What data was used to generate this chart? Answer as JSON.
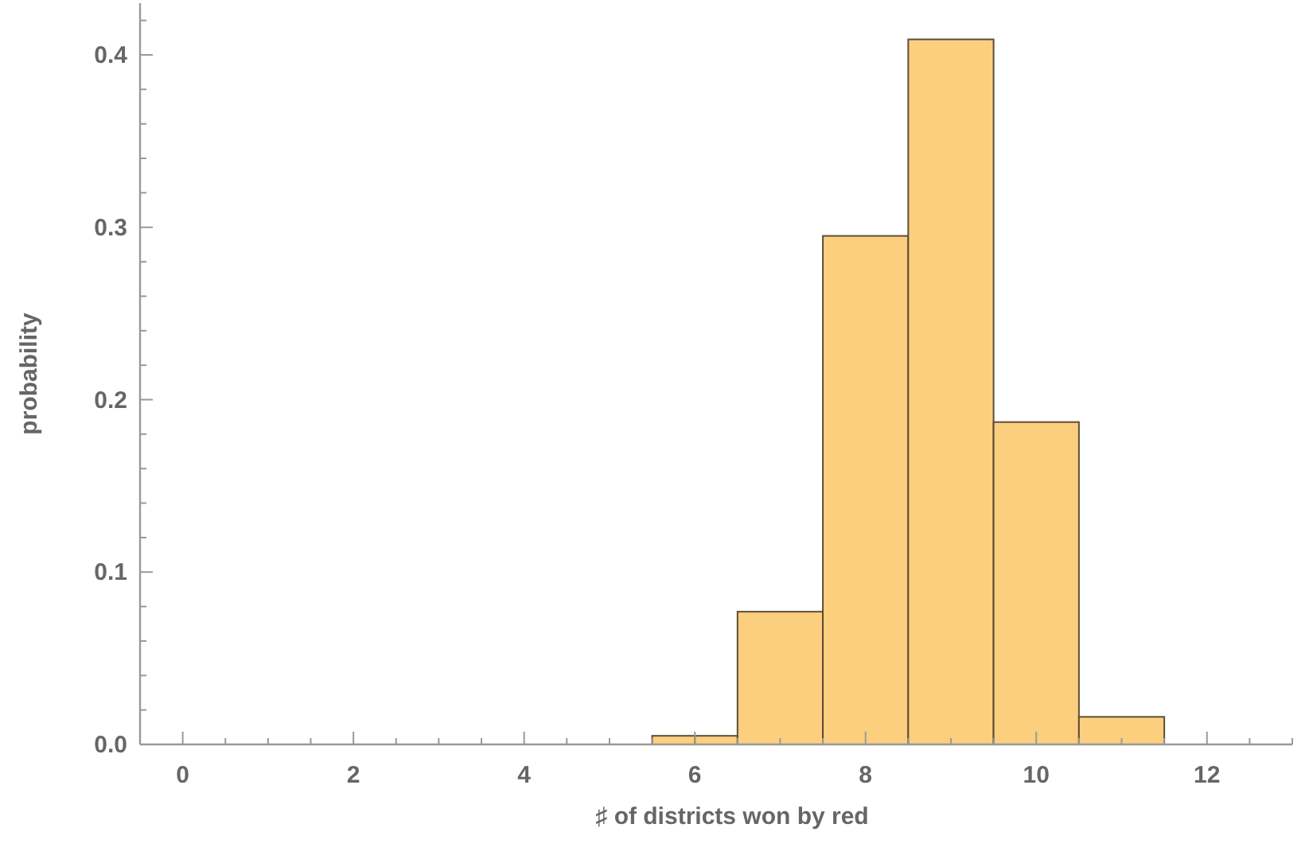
{
  "chart_data": {
    "type": "histogram",
    "xlabel": "♯ of districts won by red",
    "ylabel": "probability",
    "bins": [
      5.5,
      6,
      6.5,
      7.5,
      8.5,
      9.5,
      10.5,
      11.5
    ],
    "values": [
      0.005,
      0.005,
      0.077,
      0.295,
      0.409,
      0.187,
      0.016
    ],
    "color": "#fccf7f",
    "xlim": [
      -0.5,
      13
    ],
    "ylim": [
      0,
      0.43
    ],
    "xticks": [
      {
        "value": -0.5,
        "label": null
      },
      0,
      {
        "value": 0.5,
        "label": null
      },
      {
        "value": 1,
        "label": null
      },
      {
        "value": 1.5,
        "label": null
      },
      2,
      {
        "value": 2.5,
        "label": null
      },
      {
        "value": 3,
        "label": null
      },
      {
        "value": 3.5,
        "label": null
      },
      4,
      {
        "value": 4.5,
        "label": null
      },
      {
        "value": 5,
        "label": null
      },
      {
        "value": 5.5,
        "label": null
      },
      6,
      {
        "value": 6.5,
        "label": null
      },
      {
        "value": 7,
        "label": null
      },
      {
        "value": 7.5,
        "label": null
      },
      8,
      {
        "value": 8.5,
        "label": null
      },
      {
        "value": 9,
        "label": null
      },
      {
        "value": 9.5,
        "label": null
      },
      10,
      {
        "value": 10.5,
        "label": null
      },
      {
        "value": 11,
        "label": null
      },
      {
        "value": 11.5,
        "label": null
      },
      12,
      {
        "value": 12.5,
        "label": null
      },
      {
        "value": 13,
        "label": null
      }
    ],
    "yticks": [
      {
        "value": 0,
        "label": "0.0"
      },
      {
        "value": 0.02,
        "label": null
      },
      {
        "value": 0.04,
        "label": null
      },
      {
        "value": 0.06,
        "label": null
      },
      {
        "value": 0.08,
        "label": null
      },
      0.1,
      {
        "value": 0.12,
        "label": null
      },
      {
        "value": 0.14,
        "label": null
      },
      {
        "value": 0.16,
        "label": null
      },
      {
        "value": 0.18,
        "label": null
      },
      0.2,
      {
        "value": 0.22,
        "label": null
      },
      {
        "value": 0.24,
        "label": null
      },
      {
        "value": 0.26,
        "label": null
      },
      {
        "value": 0.28,
        "label": null
      },
      0.3,
      {
        "value": 0.32,
        "label": null
      },
      {
        "value": 0.34,
        "label": null
      },
      {
        "value": 0.36,
        "label": null
      },
      {
        "value": 0.38,
        "label": null
      },
      0.4,
      {
        "value": 0.42,
        "label": null
      }
    ]
  }
}
